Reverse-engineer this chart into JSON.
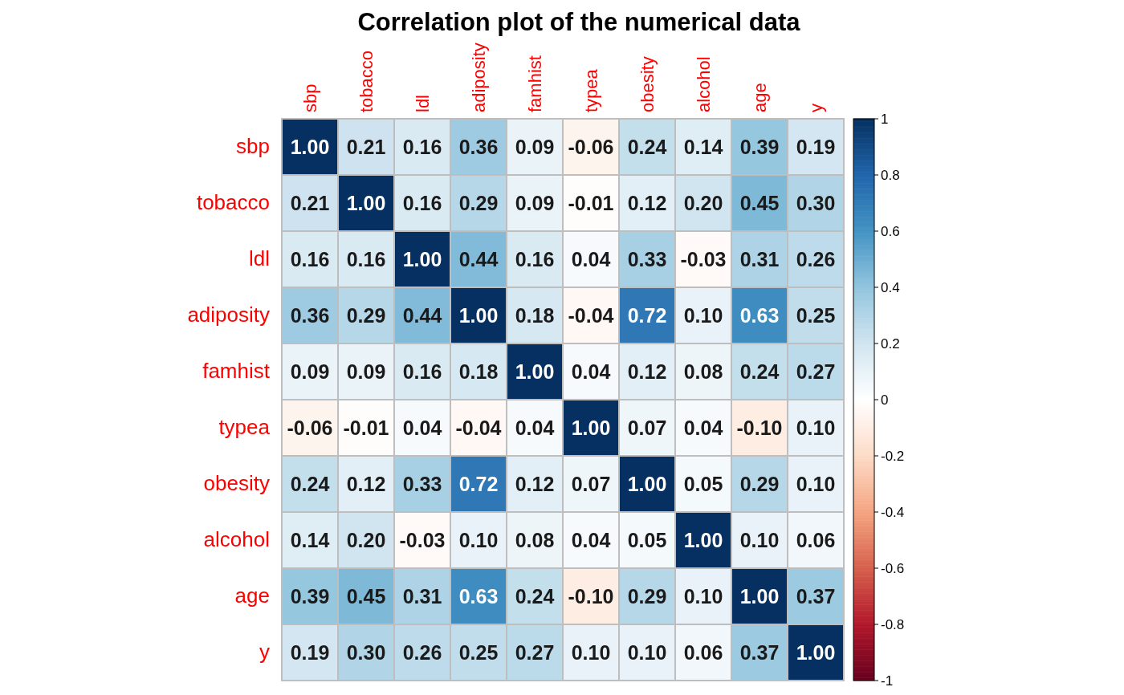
{
  "chart_data": {
    "type": "heatmap",
    "title": "Correlation plot of the numerical data",
    "categories": [
      "sbp",
      "tobacco",
      "ldl",
      "adiposity",
      "famhist",
      "typea",
      "obesity",
      "alcohol",
      "age",
      "y"
    ],
    "y_categories": [
      "sbp",
      "tobacco",
      "ldl",
      "adiposity",
      "famhist",
      "typea",
      "obesity",
      "alcohol",
      "age",
      "y"
    ],
    "cells": [
      [
        1,
        0.21,
        0.16,
        0.36,
        0.09,
        -0.06,
        0.24,
        0.14,
        0.39,
        0.19
      ],
      [
        0.21,
        1,
        0.16,
        0.29,
        0.09,
        -0.01,
        0.12,
        0.2,
        0.45,
        0.3
      ],
      [
        0.16,
        0.16,
        1,
        0.44,
        0.16,
        0.04,
        0.33,
        -0.03,
        0.31,
        0.26
      ],
      [
        0.36,
        0.29,
        0.44,
        1,
        0.18,
        -0.04,
        0.72,
        0.1,
        0.63,
        0.25
      ],
      [
        0.09,
        0.09,
        0.16,
        0.18,
        1,
        0.04,
        0.12,
        0.08,
        0.24,
        0.27
      ],
      [
        -0.06,
        -0.01,
        0.04,
        -0.04,
        0.04,
        1,
        0.07,
        0.04,
        -0.1,
        0.1
      ],
      [
        0.24,
        0.12,
        0.33,
        0.72,
        0.12,
        0.07,
        1,
        0.05,
        0.29,
        0.1
      ],
      [
        0.14,
        0.2,
        -0.03,
        0.1,
        0.08,
        0.04,
        0.05,
        1,
        0.1,
        0.06
      ],
      [
        0.39,
        0.45,
        0.31,
        0.63,
        0.24,
        -0.1,
        0.29,
        0.1,
        1,
        0.37
      ],
      [
        0.19,
        0.3,
        0.26,
        0.25,
        0.27,
        0.1,
        0.1,
        0.06,
        0.37,
        1
      ]
    ],
    "cell_labels": [
      [
        "1.00",
        "0.21",
        "0.16",
        "0.36",
        "0.09",
        "-0.06",
        "0.24",
        "0.14",
        "0.39",
        "0.19"
      ],
      [
        "0.21",
        "1.00",
        "0.16",
        "0.29",
        "0.09",
        "-0.01",
        "0.12",
        "0.20",
        "0.45",
        "0.30"
      ],
      [
        "0.16",
        "0.16",
        "1.00",
        "0.44",
        "0.16",
        "0.04",
        "0.33",
        "-0.03",
        "0.31",
        "0.26"
      ],
      [
        "0.36",
        "0.29",
        "0.44",
        "1.00",
        "0.18",
        "-0.04",
        "0.72",
        "0.10",
        "0.63",
        "0.25"
      ],
      [
        "0.09",
        "0.09",
        "0.16",
        "0.18",
        "1.00",
        "0.04",
        "0.12",
        "0.08",
        "0.24",
        "0.27"
      ],
      [
        "-0.06",
        "-0.01",
        "0.04",
        "-0.04",
        "0.04",
        "1.00",
        "0.07",
        "0.04",
        "-0.10",
        "0.10"
      ],
      [
        "0.24",
        "0.12",
        "0.33",
        "0.72",
        "0.12",
        "0.07",
        "1.00",
        "0.05",
        "0.29",
        "0.10"
      ],
      [
        "0.14",
        "0.20",
        "-0.03",
        "0.10",
        "0.08",
        "0.04",
        "0.05",
        "1.00",
        "0.10",
        "0.06"
      ],
      [
        "0.39",
        "0.45",
        "0.31",
        "0.63",
        "0.24",
        "-0.10",
        "0.29",
        "0.10",
        "1.00",
        "0.37"
      ],
      [
        "0.19",
        "0.30",
        "0.26",
        "0.25",
        "0.27",
        "0.10",
        "0.10",
        "0.06",
        "0.37",
        "1.00"
      ]
    ],
    "clim": [
      -1,
      1
    ],
    "cticks": [
      -1,
      -0.8,
      -0.6,
      -0.4,
      -0.2,
      0,
      0.2,
      0.4,
      0.6,
      0.8,
      1
    ]
  }
}
